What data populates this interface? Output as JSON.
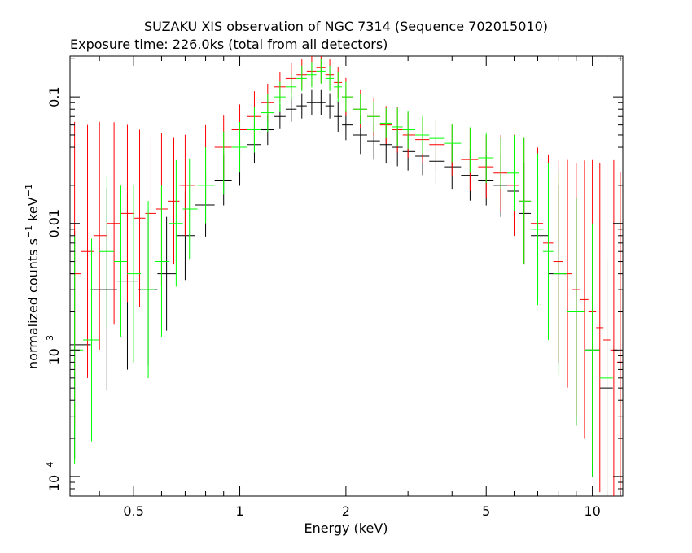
{
  "chart_data": {
    "type": "scatter",
    "title": "SUZAKU XIS observation of NGC 7314 (Sequence 702015010)",
    "subtitle": "Exposure time: 226.0ks (total from all detectors)",
    "xlabel": "Energy (keV)",
    "ylabel_parts": {
      "main": "normalized counts s",
      "sup1": "−1",
      "mid": " keV",
      "sup2": "−1"
    },
    "x_scale": "log",
    "y_scale": "log",
    "xlim": [
      0.33,
      12.2
    ],
    "ylim": [
      7e-05,
      0.21
    ],
    "x_ticks": [
      {
        "value": 0.5,
        "label": "0.5"
      },
      {
        "value": 1,
        "label": "1"
      },
      {
        "value": 2,
        "label": "2"
      },
      {
        "value": 5,
        "label": "5"
      },
      {
        "value": 10,
        "label": "10"
      }
    ],
    "y_ticks": [
      {
        "value": 0.1,
        "label": "0.1"
      },
      {
        "value": 0.01,
        "label": "0.01"
      },
      {
        "value": 0.001,
        "label": "10",
        "exp": "−3"
      },
      {
        "value": 0.0001,
        "label": "10",
        "exp": "−4"
      }
    ],
    "grid": false,
    "legend": "none",
    "series": [
      {
        "color": "#000000",
        "x": [
          0.34,
          0.42,
          0.48,
          0.55,
          0.62,
          0.7,
          0.8,
          0.9,
          1.0,
          1.1,
          1.2,
          1.3,
          1.4,
          1.5,
          1.6,
          1.7,
          1.8,
          1.9,
          2.0,
          2.2,
          2.4,
          2.6,
          2.8,
          3.0,
          3.3,
          3.6,
          4.0,
          4.5,
          5.0,
          5.5,
          6.0,
          6.4,
          7.0,
          8.0,
          9.0,
          10.0,
          11.0
        ],
        "y": [
          0.0011,
          0.003,
          0.0035,
          0.003,
          0.004,
          0.008,
          0.014,
          0.022,
          0.03,
          0.042,
          0.055,
          0.07,
          0.08,
          0.085,
          0.09,
          0.09,
          0.085,
          0.07,
          0.06,
          0.05,
          0.045,
          0.042,
          0.04,
          0.037,
          0.034,
          0.031,
          0.028,
          0.024,
          0.022,
          0.02,
          0.018,
          0.012,
          0.008,
          0.004,
          0.002,
          0.001,
          0.0005
        ],
        "yerr": [
          0.9,
          0.8,
          0.7,
          0.6,
          0.45,
          0.35,
          0.25,
          0.2,
          0.18,
          0.15,
          0.12,
          0.1,
          0.1,
          0.1,
          0.1,
          0.1,
          0.1,
          0.12,
          0.12,
          0.15,
          0.15,
          0.15,
          0.15,
          0.15,
          0.15,
          0.18,
          0.18,
          0.2,
          0.2,
          0.25,
          0.3,
          0.4,
          0.5,
          0.7,
          0.9,
          1.0,
          1.0
        ]
      },
      {
        "color": "#ff0000",
        "x": [
          0.34,
          0.37,
          0.4,
          0.44,
          0.48,
          0.52,
          0.56,
          0.6,
          0.65,
          0.7,
          0.8,
          0.9,
          1.0,
          1.1,
          1.2,
          1.3,
          1.4,
          1.5,
          1.6,
          1.7,
          1.8,
          1.9,
          2.0,
          2.2,
          2.4,
          2.6,
          2.8,
          3.0,
          3.3,
          3.6,
          4.0,
          4.5,
          5.0,
          5.5,
          6.0,
          6.4,
          7.0,
          7.5,
          8.0,
          8.5,
          9.0,
          9.5,
          10.0,
          10.5,
          11.0,
          11.5,
          12.0
        ],
        "y": [
          0.004,
          0.006,
          0.008,
          0.01,
          0.012,
          0.011,
          0.012,
          0.013,
          0.015,
          0.02,
          0.03,
          0.04,
          0.055,
          0.07,
          0.09,
          0.12,
          0.14,
          0.15,
          0.16,
          0.17,
          0.15,
          0.13,
          0.1,
          0.08,
          0.07,
          0.06,
          0.055,
          0.05,
          0.046,
          0.042,
          0.038,
          0.032,
          0.028,
          0.025,
          0.02,
          0.015,
          0.01,
          0.007,
          0.005,
          0.004,
          0.003,
          0.0025,
          0.002,
          0.0015,
          0.0012,
          0.001,
          0.0008
        ],
        "yerr": [
          1.2,
          1.0,
          0.9,
          0.8,
          0.7,
          0.7,
          0.6,
          0.6,
          0.5,
          0.4,
          0.3,
          0.25,
          0.2,
          0.2,
          0.15,
          0.12,
          0.12,
          0.12,
          0.12,
          0.12,
          0.12,
          0.12,
          0.15,
          0.15,
          0.15,
          0.15,
          0.18,
          0.18,
          0.18,
          0.2,
          0.2,
          0.25,
          0.25,
          0.3,
          0.4,
          0.5,
          0.6,
          0.7,
          0.8,
          0.9,
          1.0,
          1.1,
          1.2,
          1.3,
          1.4,
          1.5,
          1.5
        ]
      },
      {
        "color": "#00ff00",
        "x": [
          0.34,
          0.38,
          0.42,
          0.46,
          0.5,
          0.55,
          0.6,
          0.66,
          0.72,
          0.8,
          0.9,
          1.0,
          1.1,
          1.2,
          1.3,
          1.4,
          1.5,
          1.6,
          1.7,
          1.8,
          1.9,
          2.0,
          2.2,
          2.4,
          2.6,
          2.8,
          3.0,
          3.3,
          3.6,
          4.0,
          4.5,
          5.0,
          5.5,
          6.0,
          6.4,
          7.0,
          7.5,
          8.0,
          9.0,
          10.0,
          11.0
        ],
        "y": [
          0.001,
          0.0012,
          0.006,
          0.005,
          0.004,
          0.003,
          0.005,
          0.01,
          0.013,
          0.02,
          0.03,
          0.04,
          0.055,
          0.075,
          0.1,
          0.12,
          0.14,
          0.15,
          0.16,
          0.14,
          0.12,
          0.1,
          0.08,
          0.07,
          0.062,
          0.058,
          0.055,
          0.05,
          0.047,
          0.043,
          0.038,
          0.033,
          0.03,
          0.025,
          0.015,
          0.009,
          0.006,
          0.004,
          0.002,
          0.001,
          0.0006
        ],
        "yerr": [
          0.9,
          0.8,
          0.6,
          0.6,
          0.7,
          0.7,
          0.6,
          0.5,
          0.4,
          0.3,
          0.25,
          0.2,
          0.18,
          0.15,
          0.12,
          0.1,
          0.1,
          0.1,
          0.1,
          0.1,
          0.12,
          0.12,
          0.12,
          0.12,
          0.12,
          0.15,
          0.15,
          0.15,
          0.15,
          0.15,
          0.18,
          0.2,
          0.2,
          0.3,
          0.5,
          0.6,
          0.7,
          0.8,
          0.9,
          1.0,
          1.0
        ]
      }
    ]
  }
}
